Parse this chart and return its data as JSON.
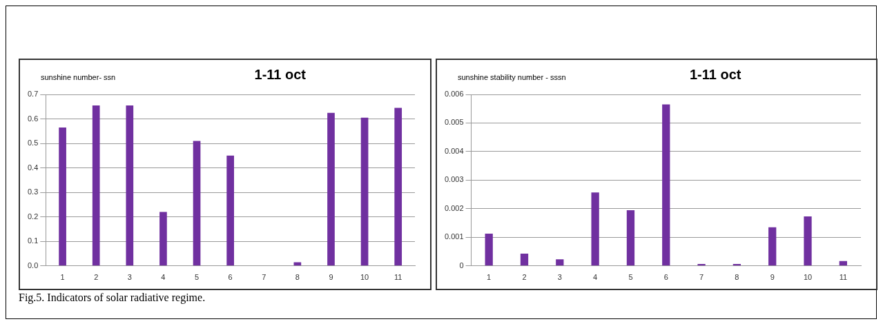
{
  "chart_data": [
    {
      "type": "bar",
      "title": "1-11 oct",
      "subtitle": "sunshine number- ssn",
      "categories": [
        "1",
        "2",
        "3",
        "4",
        "5",
        "6",
        "7",
        "8",
        "9",
        "10",
        "11"
      ],
      "values": [
        0.565,
        0.655,
        0.655,
        0.22,
        0.51,
        0.45,
        0,
        0.015,
        0.625,
        0.605,
        0.645
      ],
      "color": "#7030a0",
      "ylim": [
        0,
        0.7
      ],
      "yticks": [
        {
          "value": 0,
          "label": "0.0"
        },
        0.1,
        0.2,
        0.3,
        0.4,
        0.5,
        0.6,
        0.7
      ],
      "grid": "y",
      "annotations": [
        "Fig.5. Indicators of solar radiative regime."
      ]
    },
    {
      "type": "bar",
      "title": "1-11 oct",
      "subtitle": "sunshine stability number - sssn",
      "categories": [
        "1",
        "2",
        "3",
        "4",
        "5",
        "6",
        "7",
        "8",
        "9",
        "10",
        "11"
      ],
      "values": [
        0.00113,
        0.00043,
        0.00023,
        0.00257,
        0.00195,
        0.00565,
        7e-05,
        7e-05,
        0.00135,
        0.00173,
        0.00017
      ],
      "color": "#7030a0",
      "ylim": [
        0,
        0.006
      ],
      "yticks": [
        0,
        0.001,
        0.002,
        0.003,
        0.004,
        0.005,
        0.006
      ],
      "grid": "y"
    }
  ]
}
